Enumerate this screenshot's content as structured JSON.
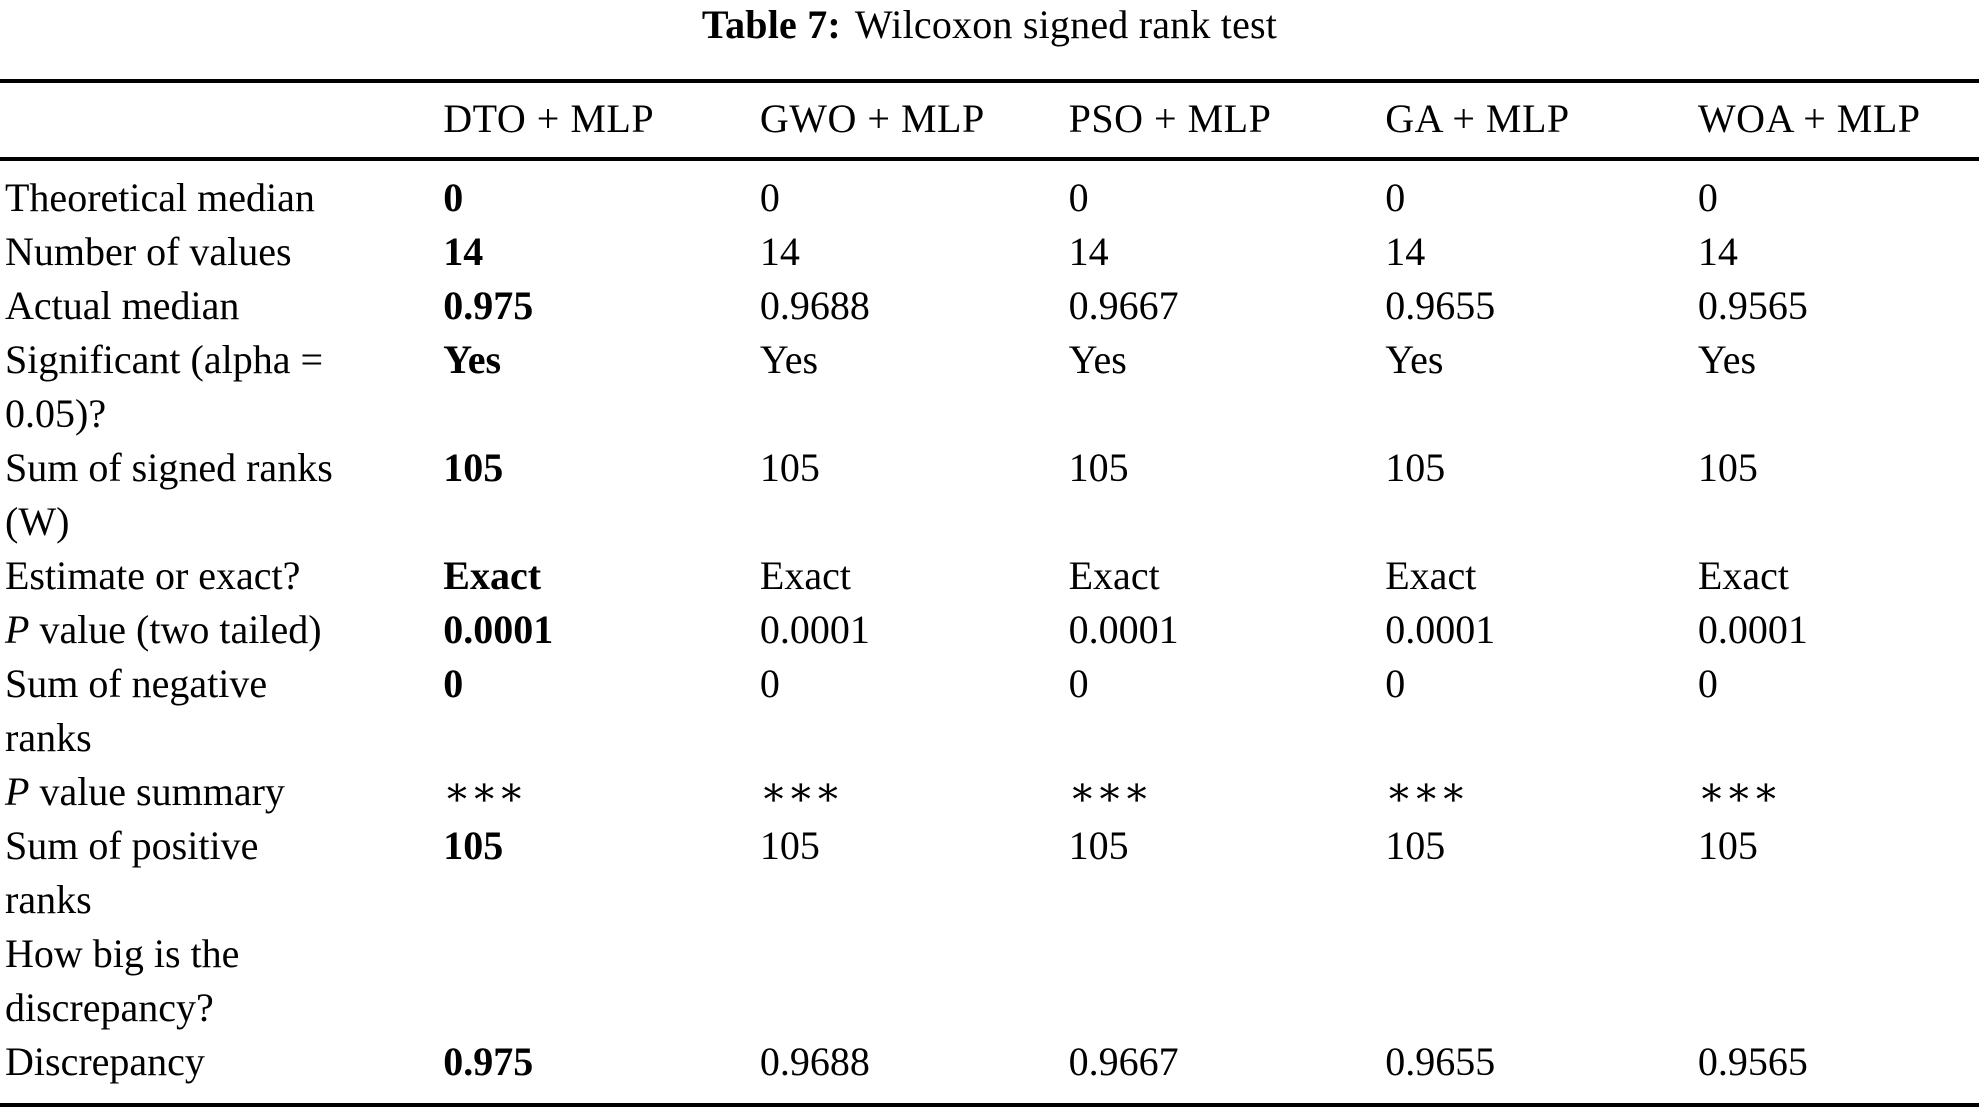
{
  "caption": {
    "label": "Table 7:",
    "title": "Wilcoxon signed rank test"
  },
  "table": {
    "columns": [
      "DTO + MLP",
      "GWO + MLP",
      "PSO + MLP",
      "GA + MLP",
      "WOA + MLP"
    ],
    "rows": [
      {
        "label": "Theoretical median",
        "values": [
          "0",
          "0",
          "0",
          "0",
          "0"
        ]
      },
      {
        "label": "Number of values",
        "values": [
          "14",
          "14",
          "14",
          "14",
          "14"
        ]
      },
      {
        "label": "Actual median",
        "values": [
          "0.975",
          "0.9688",
          "0.9667",
          "0.9655",
          "0.9565"
        ]
      },
      {
        "label": "Significant (alpha =\n0.05)?",
        "values": [
          "Yes",
          "Yes",
          "Yes",
          "Yes",
          "Yes"
        ]
      },
      {
        "label": "Sum of signed ranks\n(W)",
        "values": [
          "105",
          "105",
          "105",
          "105",
          "105"
        ]
      },
      {
        "label": "Estimate or exact?",
        "values": [
          "Exact",
          "Exact",
          "Exact",
          "Exact",
          "Exact"
        ]
      },
      {
        "label_italic": "P",
        "label": " value (two tailed)",
        "values": [
          "0.0001",
          "0.0001",
          "0.0001",
          "0.0001",
          "0.0001"
        ]
      },
      {
        "label": "Sum of negative\nranks",
        "values": [
          "0",
          "0",
          "0",
          "0",
          "0"
        ]
      },
      {
        "label_italic": "P",
        "label": " value summary",
        "values": [
          "∗∗∗",
          "∗∗∗",
          "∗∗∗",
          "∗∗∗",
          "∗∗∗"
        ]
      },
      {
        "label": "Sum of positive\nranks",
        "values": [
          "105",
          "105",
          "105",
          "105",
          "105"
        ]
      },
      {
        "label": "How big is the\ndiscrepancy?",
        "values": [
          "",
          "",
          "",
          "",
          ""
        ]
      },
      {
        "label": "Discrepancy",
        "values": [
          "0.975",
          "0.9688",
          "0.9667",
          "0.9655",
          "0.9565"
        ]
      }
    ]
  }
}
